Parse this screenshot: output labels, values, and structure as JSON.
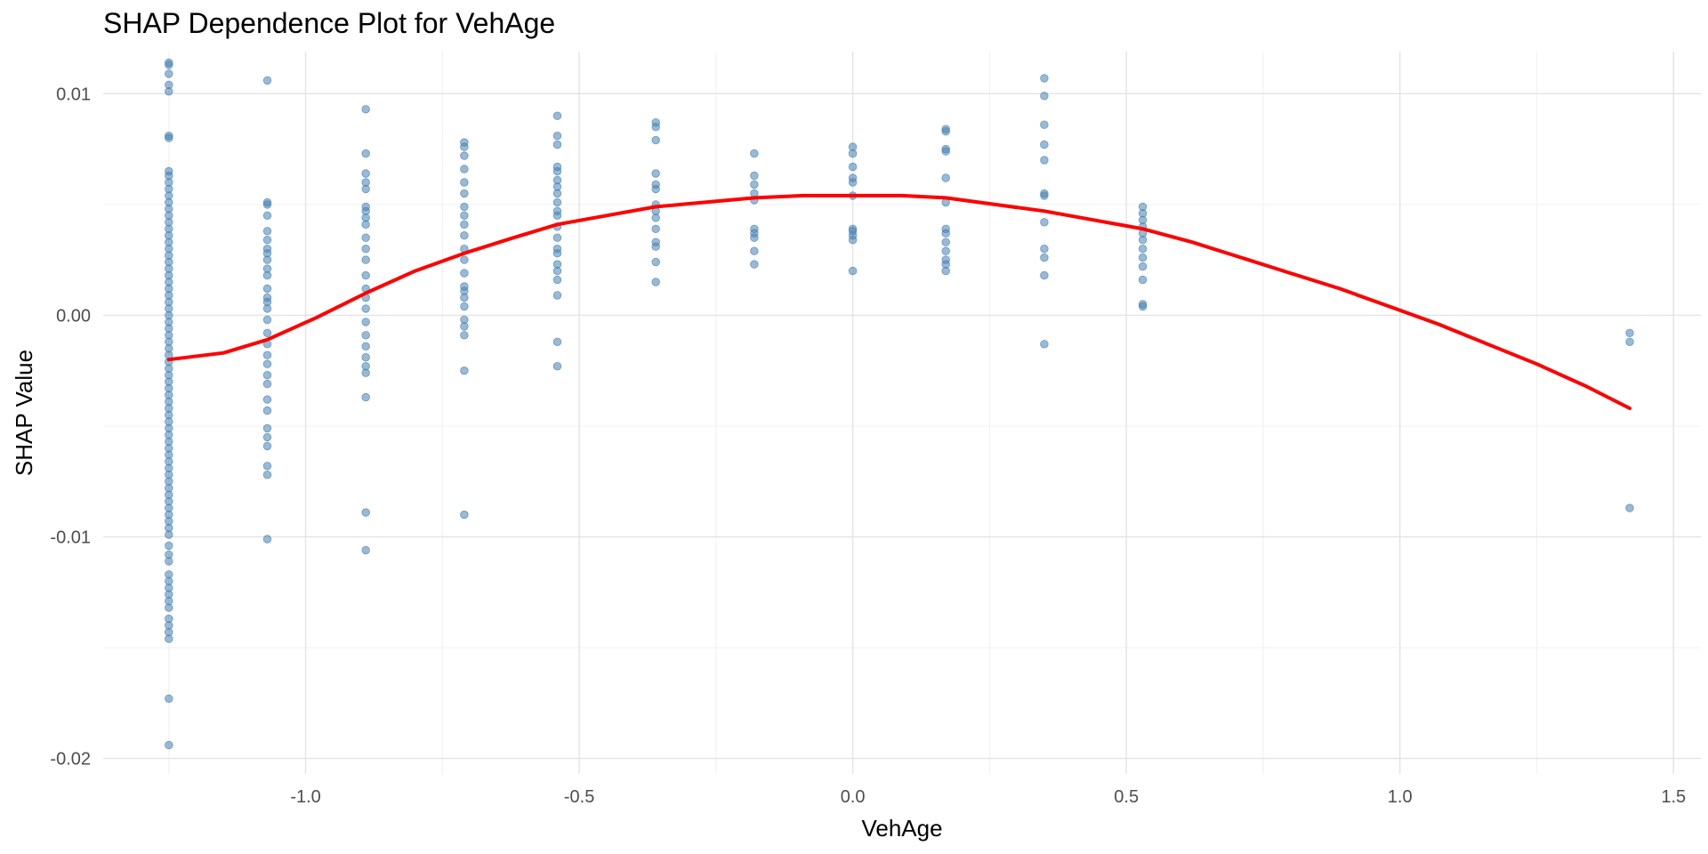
{
  "chart_data": {
    "type": "scatter",
    "title": "SHAP Dependence Plot for VehAge",
    "xlabel": "VehAge",
    "ylabel": "SHAP Value",
    "xlim": [
      -1.37,
      1.55
    ],
    "ylim": [
      -0.0207,
      0.0119
    ],
    "x_ticks": [
      -1.0,
      -0.5,
      0.0,
      0.5,
      1.0,
      1.5
    ],
    "x_tick_labels": [
      "-1.0",
      "-0.5",
      "0.0",
      "0.5",
      "1.0",
      "1.5"
    ],
    "y_ticks": [
      -0.02,
      -0.01,
      0.0,
      0.01
    ],
    "y_tick_labels": [
      "-0.02",
      "-0.01",
      "0.00",
      "0.01"
    ],
    "grid": true,
    "point_color": "#4682B4",
    "point_alpha": 0.55,
    "smooth_color": "#FF0000",
    "series": [
      {
        "type": "scatter",
        "columns": [
          {
            "x": -1.25,
            "y": [
              0.0114,
              0.0113,
              0.0109,
              0.0104,
              0.0101,
              0.0081,
              0.008,
              0.0065,
              0.0063,
              0.006,
              0.0057,
              0.0054,
              0.0051,
              0.0048,
              0.0045,
              0.0042,
              0.0039,
              0.0036,
              0.0033,
              0.003,
              0.0027,
              0.0024,
              0.0021,
              0.0018,
              0.0015,
              0.0012,
              0.0009,
              0.0006,
              0.0003,
              0.0,
              -0.0003,
              -0.0006,
              -0.0009,
              -0.0012,
              -0.0015,
              -0.0018,
              -0.0021,
              -0.0024,
              -0.0027,
              -0.003,
              -0.0033,
              -0.0036,
              -0.0039,
              -0.0042,
              -0.0045,
              -0.0048,
              -0.0051,
              -0.0054,
              -0.0057,
              -0.006,
              -0.0063,
              -0.0066,
              -0.0069,
              -0.0072,
              -0.0075,
              -0.0078,
              -0.0081,
              -0.0084,
              -0.0087,
              -0.009,
              -0.0093,
              -0.0096,
              -0.0099,
              -0.0104,
              -0.0108,
              -0.0111,
              -0.0117,
              -0.012,
              -0.0123,
              -0.0126,
              -0.0129,
              -0.0132,
              -0.0137,
              -0.014,
              -0.0143,
              -0.0146,
              -0.0173,
              -0.0194
            ]
          },
          {
            "x": -1.07,
            "y": [
              0.0106,
              0.0051,
              0.005,
              0.0045,
              0.0038,
              0.0034,
              0.003,
              0.0028,
              0.0025,
              0.0021,
              0.0018,
              0.0012,
              0.0008,
              0.0006,
              0.0003,
              -0.0002,
              -0.0008,
              -0.0013,
              -0.0018,
              -0.0022,
              -0.0027,
              -0.0031,
              -0.0038,
              -0.0043,
              -0.0051,
              -0.0055,
              -0.0059,
              -0.0068,
              -0.0072,
              -0.0101
            ]
          },
          {
            "x": -0.89,
            "y": [
              0.0093,
              0.0073,
              0.0064,
              0.006,
              0.0057,
              0.0049,
              0.0047,
              0.0044,
              0.0041,
              0.0035,
              0.003,
              0.0025,
              0.0018,
              0.0012,
              0.0008,
              0.0003,
              -0.0003,
              -0.0009,
              -0.0014,
              -0.0019,
              -0.0023,
              -0.0026,
              -0.0037,
              -0.0089,
              -0.0106
            ]
          },
          {
            "x": -0.71,
            "y": [
              0.0078,
              0.0076,
              0.0072,
              0.0066,
              0.006,
              0.0055,
              0.0049,
              0.0045,
              0.0041,
              0.0036,
              0.003,
              0.0025,
              0.0019,
              0.0013,
              0.0011,
              0.0008,
              0.0004,
              -0.0002,
              -0.0005,
              -0.0009,
              -0.0025,
              -0.009
            ]
          },
          {
            "x": -0.54,
            "y": [
              0.009,
              0.0081,
              0.0077,
              0.0067,
              0.0065,
              0.0061,
              0.0058,
              0.0055,
              0.0051,
              0.0047,
              0.0045,
              0.004,
              0.0035,
              0.003,
              0.0028,
              0.0023,
              0.002,
              0.0016,
              0.0009,
              -0.0012,
              -0.0023
            ]
          },
          {
            "x": -0.36,
            "y": [
              0.0087,
              0.0085,
              0.0079,
              0.0064,
              0.0059,
              0.0057,
              0.005,
              0.0047,
              0.0044,
              0.0039,
              0.0033,
              0.0031,
              0.0024,
              0.0015
            ]
          },
          {
            "x": -0.18,
            "y": [
              0.0073,
              0.0063,
              0.0059,
              0.0055,
              0.0052,
              0.0039,
              0.0037,
              0.0035,
              0.0029,
              0.0023
            ]
          },
          {
            "x": 0.0,
            "y": [
              0.0076,
              0.0073,
              0.0067,
              0.0062,
              0.006,
              0.0054,
              0.0039,
              0.0038,
              0.0036,
              0.0034,
              0.002
            ]
          },
          {
            "x": 0.17,
            "y": [
              0.0084,
              0.0083,
              0.0075,
              0.0074,
              0.0062,
              0.0051,
              0.0039,
              0.0037,
              0.0033,
              0.0029,
              0.0025,
              0.0023,
              0.002
            ]
          },
          {
            "x": 0.35,
            "y": [
              0.0107,
              0.0099,
              0.0086,
              0.0077,
              0.007,
              0.0055,
              0.0054,
              0.0042,
              0.003,
              0.0026,
              0.0018,
              -0.0013
            ]
          },
          {
            "x": 0.53,
            "y": [
              0.0049,
              0.0046,
              0.0043,
              0.004,
              0.0037,
              0.0034,
              0.003,
              0.0026,
              0.0022,
              0.0016,
              0.0005,
              0.0004
            ]
          },
          {
            "x": 1.42,
            "y": [
              -0.0008,
              -0.0012,
              -0.0087
            ]
          }
        ]
      },
      {
        "type": "line",
        "x": [
          -1.25,
          -1.15,
          -1.07,
          -0.98,
          -0.89,
          -0.8,
          -0.71,
          -0.62,
          -0.54,
          -0.45,
          -0.36,
          -0.27,
          -0.18,
          -0.09,
          0.0,
          0.09,
          0.17,
          0.26,
          0.35,
          0.44,
          0.53,
          0.62,
          0.71,
          0.8,
          0.89,
          0.98,
          1.07,
          1.16,
          1.25,
          1.34,
          1.42
        ],
        "y": [
          -0.002,
          -0.0017,
          -0.0011,
          -0.0001,
          0.001,
          0.002,
          0.0028,
          0.0035,
          0.0041,
          0.0045,
          0.0049,
          0.0051,
          0.0053,
          0.0054,
          0.0054,
          0.0054,
          0.0053,
          0.005,
          0.0047,
          0.0043,
          0.0039,
          0.0033,
          0.0026,
          0.0019,
          0.0012,
          0.0004,
          -0.0004,
          -0.0013,
          -0.0022,
          -0.0032,
          -0.0042
        ]
      }
    ]
  }
}
